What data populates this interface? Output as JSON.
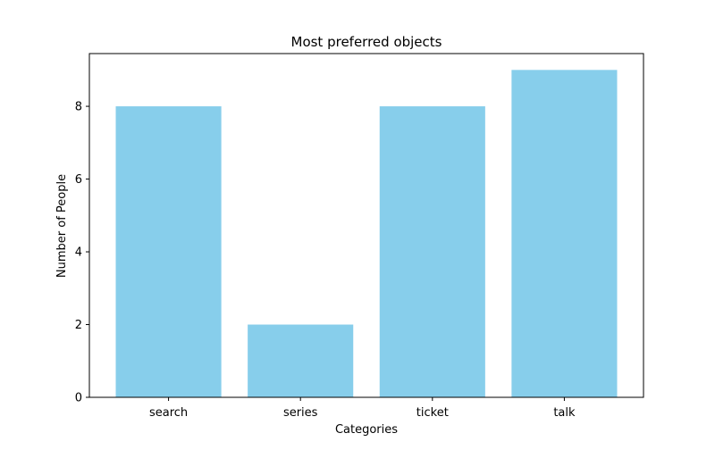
{
  "chart_data": {
    "type": "bar",
    "title": "Most preferred objects",
    "xlabel": "Categories",
    "ylabel": "Number of People",
    "categories": [
      "search",
      "series",
      "ticket",
      "talk"
    ],
    "values": [
      8,
      2,
      8,
      9
    ],
    "ylim": [
      0,
      9.45
    ],
    "yticks": [
      0,
      2,
      4,
      6,
      8
    ],
    "grid": false,
    "bar_color": "#87CEEB"
  }
}
